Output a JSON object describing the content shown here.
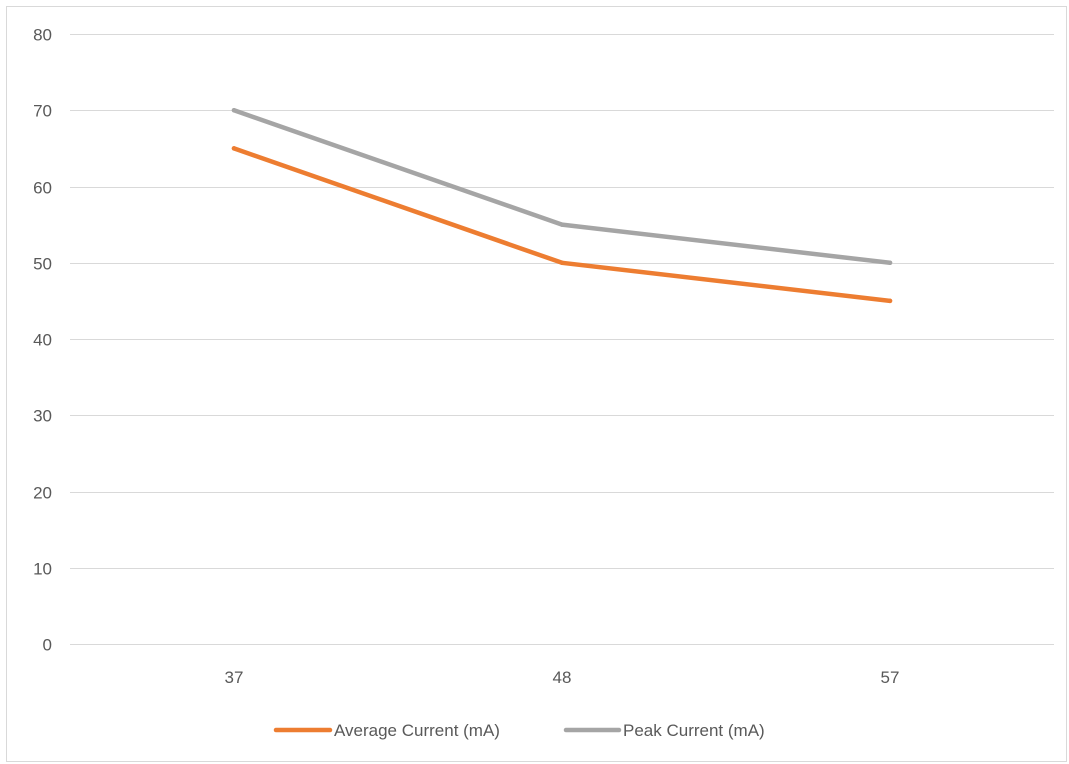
{
  "chart_data": {
    "type": "line",
    "title": "",
    "xlabel": "",
    "ylabel": "",
    "categories": [
      "37",
      "48",
      "57"
    ],
    "ylim": [
      0,
      80
    ],
    "yticks": [
      0,
      10,
      20,
      30,
      40,
      50,
      60,
      70,
      80
    ],
    "grid": true,
    "legend_position": "bottom",
    "series": [
      {
        "name": "Average Current (mA)",
        "values": [
          65,
          50,
          45
        ],
        "color": "#ED7D31"
      },
      {
        "name": "Peak Current (mA)",
        "values": [
          70,
          55,
          50
        ],
        "color": "#A5A5A5"
      }
    ]
  }
}
